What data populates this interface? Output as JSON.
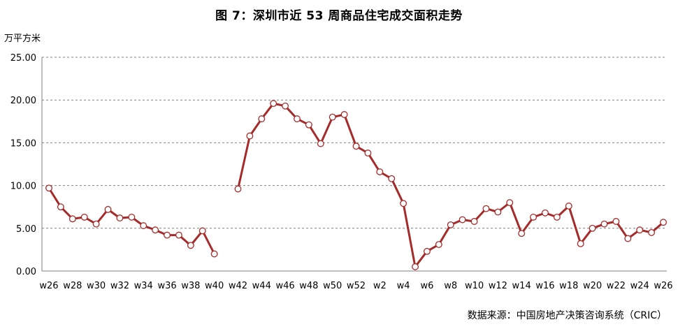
{
  "chart_data": {
    "type": "line",
    "title": "图 7：深圳市近 53 周商品住宅成交面积走势",
    "ylabel": "万平方米",
    "source": "数据来源：中国房地产决策咨询系统（CRIC）",
    "ylim": [
      0,
      25
    ],
    "yticks": [
      "0.00",
      "5.00",
      "10.00",
      "15.00",
      "20.00",
      "25.00"
    ],
    "grid": true,
    "line_color": "#A52A2A",
    "x": [
      "w26",
      "w27",
      "w28",
      "w29",
      "w30",
      "w31",
      "w32",
      "w33",
      "w34",
      "w35",
      "w36",
      "w37",
      "w38",
      "w39",
      "w40",
      "w41",
      "w42",
      "w43",
      "w44",
      "w45",
      "w46",
      "w47",
      "w48",
      "w49",
      "w50",
      "w51",
      "w52",
      "w1",
      "w2",
      "w3",
      "w4",
      "w5",
      "w6",
      "w7",
      "w8",
      "w9",
      "w10",
      "w11",
      "w12",
      "w13",
      "w14",
      "w15",
      "w16",
      "w17",
      "w18",
      "w19",
      "w20",
      "w21",
      "w22",
      "w23",
      "w24",
      "w25",
      "w26"
    ],
    "xtick_labels": [
      "w26",
      "",
      "w28",
      "",
      "w30",
      "",
      "w32",
      "",
      "w34",
      "",
      "w36",
      "",
      "w38",
      "",
      "w40",
      "",
      "w42",
      "",
      "w44",
      "",
      "w46",
      "",
      "w48",
      "",
      "w50",
      "",
      "w52",
      "",
      "w2",
      "",
      "w4",
      "",
      "w6",
      "",
      "w8",
      "",
      "w10",
      "",
      "w12",
      "",
      "w14",
      "",
      "w16",
      "",
      "w18",
      "",
      "w20",
      "",
      "w22",
      "",
      "w24",
      "",
      "w26"
    ],
    "series": [
      {
        "values": [
          9.7,
          7.5,
          6.1,
          6.3,
          5.5,
          7.2,
          6.2,
          6.3,
          5.3,
          4.8,
          4.2,
          4.2,
          3.0,
          4.7,
          2.0,
          null,
          9.6,
          15.8,
          17.8,
          19.6,
          19.3,
          17.8,
          17.1,
          14.9,
          18.0,
          18.3,
          14.6,
          13.8,
          11.6,
          10.8,
          7.9,
          0.5,
          2.3,
          3.1,
          5.4,
          6.0,
          5.8,
          7.3,
          6.9,
          8.0,
          4.4,
          6.3,
          6.8,
          6.3,
          7.6,
          3.2,
          5.0,
          5.5,
          5.8,
          3.8,
          4.8,
          4.5,
          5.7
        ]
      }
    ]
  }
}
